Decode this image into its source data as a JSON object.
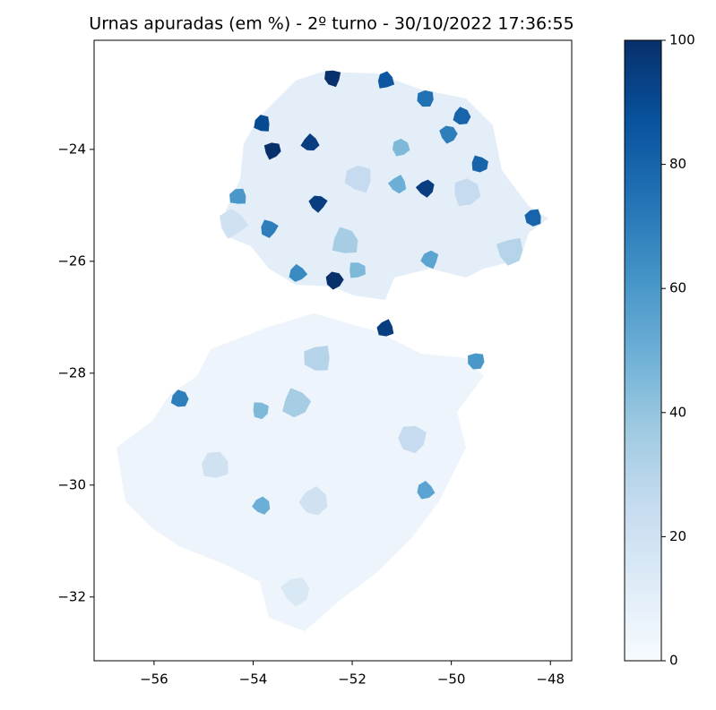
{
  "chart_data": {
    "type": "choropleth",
    "title": "Urnas apuradas (em %) - 2º turno - 30/10/2022 17:36:55",
    "xlim": [
      -57.21,
      -47.57
    ],
    "ylim": [
      -33.14,
      -22.05
    ],
    "xticks": [
      {
        "value": -56,
        "label": "−56"
      },
      {
        "value": -54,
        "label": "−54"
      },
      {
        "value": -52,
        "label": "−52"
      },
      {
        "value": -50,
        "label": "−50"
      },
      {
        "value": -48,
        "label": "−48"
      }
    ],
    "yticks": [
      {
        "value": -24,
        "label": "−24"
      },
      {
        "value": -26,
        "label": "−26"
      },
      {
        "value": -28,
        "label": "−28"
      },
      {
        "value": -30,
        "label": "−30"
      },
      {
        "value": -32,
        "label": "−32"
      }
    ],
    "colorbar": {
      "lim": [
        0,
        100
      ],
      "ticks": [
        0,
        20,
        40,
        60,
        80,
        100
      ],
      "colormap": [
        "#f7fbff",
        "#deebf7",
        "#c6dbef",
        "#9ecae1",
        "#6baed6",
        "#4292c6",
        "#2171b5",
        "#08519c",
        "#08306b"
      ]
    },
    "regions": {
      "x": [
        -53.81,
        -53.61,
        -52.85,
        -52.4,
        -51.33,
        -50.52,
        -49.43,
        -48.34,
        -52.36,
        -55.48,
        -49.5,
        -50.52,
        -50.43,
        -51.91,
        -51.08,
        -53.68,
        -54.3,
        -50.06,
        -49.79,
        -50.52,
        -51.02,
        -53.83,
        -53.86,
        -51.33,
        -52.69,
        -52.14,
        -48.8,
        -53.1,
        -51.87,
        -49.7,
        -52.77,
        -50.79,
        -54.77,
        -53.14,
        -53.14,
        -52.69,
        -54.41
      ],
      "y": [
        -23.54,
        -24.02,
        -23.89,
        -22.72,
        -22.77,
        -24.69,
        -24.26,
        -25.22,
        -26.34,
        -28.46,
        -27.78,
        -30.1,
        -25.97,
        -26.16,
        -24.62,
        -25.41,
        -24.85,
        -23.73,
        -23.41,
        -23.09,
        -23.97,
        -30.37,
        -28.66,
        -27.2,
        -24.96,
        -25.65,
        -25.81,
        -26.22,
        -24.53,
        -24.77,
        -30.29,
        -29.17,
        -29.65,
        -31.89,
        -28.53,
        -27.73,
        -25.33
      ],
      "values": [
        90,
        100,
        95,
        100,
        85,
        95,
        80,
        80,
        100,
        70,
        60,
        55,
        55,
        45,
        50,
        70,
        60,
        70,
        80,
        75,
        45,
        50,
        45,
        95,
        95,
        35,
        30,
        65,
        25,
        25,
        20,
        25,
        20,
        15,
        35,
        30,
        20
      ]
    }
  }
}
